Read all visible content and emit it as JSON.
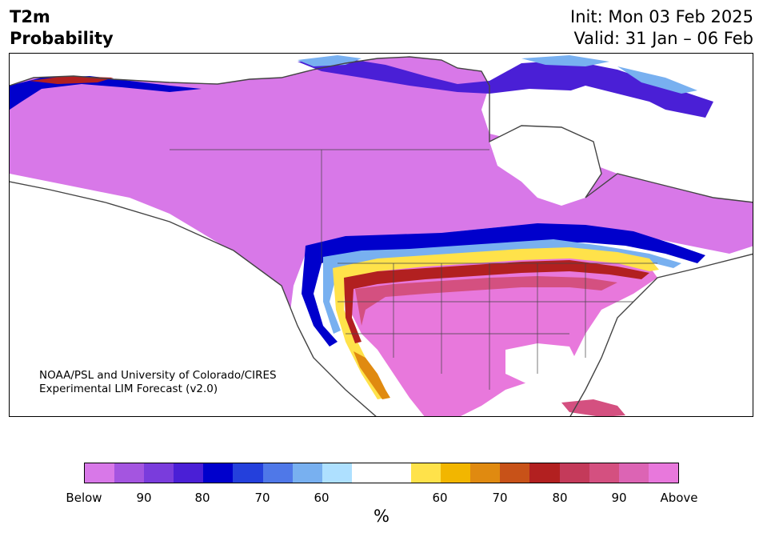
{
  "header": {
    "variable": "T2m",
    "product": "Probability",
    "init": "Init: Mon 03 Feb 2025",
    "valid": "Valid: 31 Jan – 06 Feb"
  },
  "credit": {
    "line1": "NOAA/PSL and University of Colorado/CIRES",
    "line2": "Experimental LIM Forecast (v2.0)"
  },
  "colorbar": {
    "colors": [
      "#d878e8",
      "#a455e0",
      "#7a3cdc",
      "#4a1fd6",
      "#0000cc",
      "#2440dc",
      "#4f78e8",
      "#78b0f0",
      "#aee0ff",
      "#ffffff",
      "#ffffff",
      "#ffe24a",
      "#f2b600",
      "#e08a10",
      "#c85218",
      "#b22020",
      "#c43a5a",
      "#d45080",
      "#dc64b4",
      "#e878dc"
    ],
    "ticks": [
      "Below",
      "90",
      "80",
      "70",
      "60",
      "60",
      "70",
      "80",
      "90",
      "Above"
    ],
    "unit": "%"
  },
  "map": {
    "colors": {
      "ocean": "#ffffff",
      "below_high": "#d878e8",
      "below_90": "#a455e0",
      "below_80": "#4a1fd6",
      "below_70": "#0000cc",
      "below_60": "#78b0f0",
      "above_60": "#ffe24a",
      "above_70": "#e08a10",
      "above_80": "#b22020",
      "above_90": "#d45080",
      "above_high": "#e878dc",
      "coast": "#444444"
    }
  }
}
